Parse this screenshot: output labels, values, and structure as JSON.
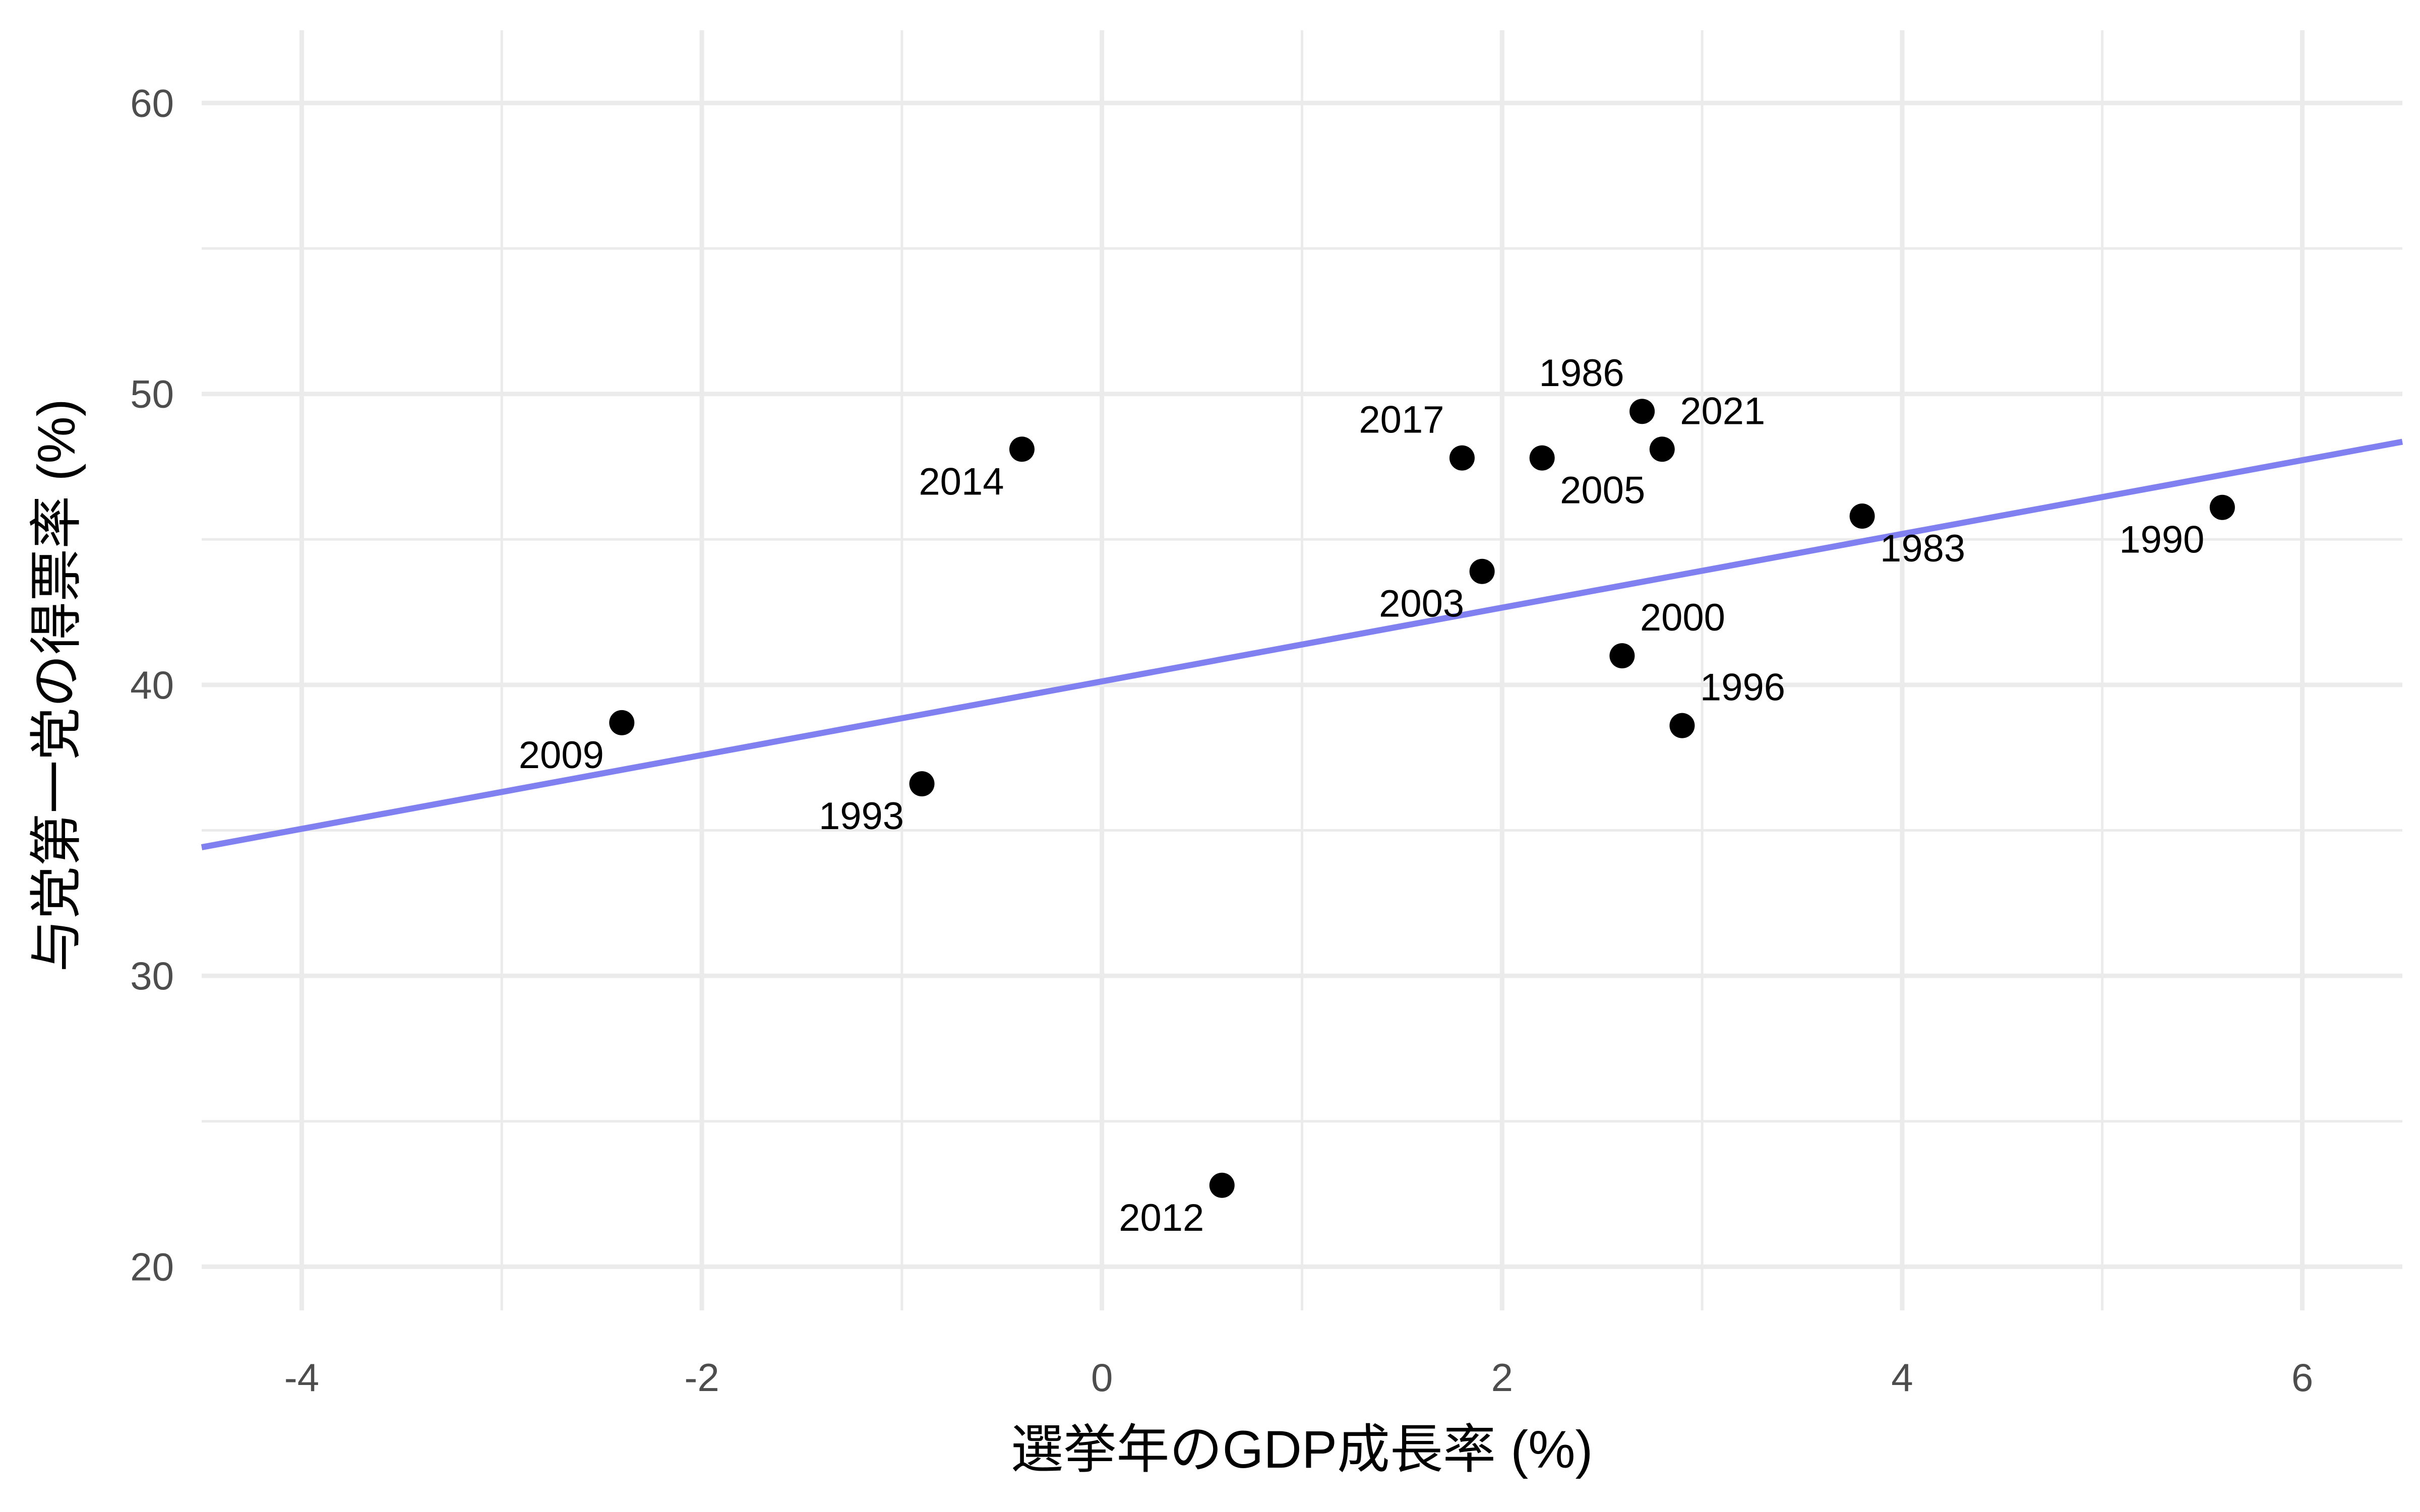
{
  "chart_data": {
    "type": "scatter",
    "title": "",
    "xlabel": "選挙年のGDP成長率 (%)",
    "ylabel": "与党第一党の得票率 (%)",
    "xlim": [
      -4.5,
      6.5
    ],
    "ylim": [
      18.5,
      62.5
    ],
    "x_ticks": [
      -4,
      -2,
      0,
      2,
      4,
      6
    ],
    "x_tick_labels": [
      "-4",
      "-2",
      "0",
      "2",
      "4",
      "6"
    ],
    "y_ticks": [
      20,
      30,
      40,
      50,
      60
    ],
    "y_tick_labels": [
      "20",
      "30",
      "40",
      "50",
      "60"
    ],
    "grid": true,
    "points": [
      {
        "label": "1983",
        "x": 3.8,
        "y": 45.8
      },
      {
        "label": "1986",
        "x": 2.7,
        "y": 49.4
      },
      {
        "label": "1990",
        "x": 5.6,
        "y": 46.1
      },
      {
        "label": "1993",
        "x": -0.9,
        "y": 36.6
      },
      {
        "label": "1996",
        "x": 2.9,
        "y": 38.6
      },
      {
        "label": "2000",
        "x": 2.6,
        "y": 41.0
      },
      {
        "label": "2003",
        "x": 1.9,
        "y": 43.9
      },
      {
        "label": "2005",
        "x": 2.2,
        "y": 47.8
      },
      {
        "label": "2009",
        "x": -2.4,
        "y": 38.7
      },
      {
        "label": "2012",
        "x": 0.6,
        "y": 22.8
      },
      {
        "label": "2014",
        "x": -0.4,
        "y": 48.1
      },
      {
        "label": "2017",
        "x": 1.8,
        "y": 47.8
      },
      {
        "label": "2021",
        "x": 2.8,
        "y": 48.1
      }
    ],
    "fit_line": {
      "type": "linear",
      "intercept": 40.12,
      "slope": 1.267,
      "color": "#8080f0"
    },
    "point_color": "#000000",
    "grid_color": "#ebebeb"
  }
}
